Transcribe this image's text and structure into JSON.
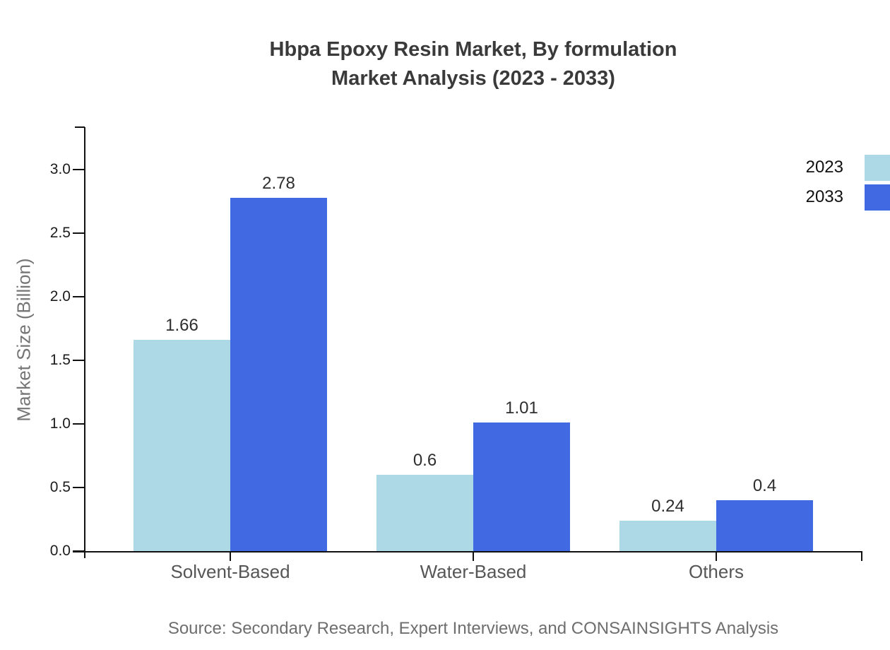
{
  "title": {
    "line1": "Hbpa Epoxy Resin Market, By formulation",
    "line2": "Market Analysis (2023 - 2033)"
  },
  "chart_data": {
    "type": "bar",
    "categories": [
      "Solvent-Based",
      "Water-Based",
      "Others"
    ],
    "series": [
      {
        "name": "2023",
        "color": "#add8e6",
        "values": [
          1.66,
          0.6,
          0.24
        ],
        "labels": [
          "1.66",
          "0.6",
          "0.24"
        ]
      },
      {
        "name": "2033",
        "color": "#4169e1",
        "values": [
          2.78,
          1.01,
          0.4
        ],
        "labels": [
          "2.78",
          "1.01",
          "0.4"
        ]
      }
    ],
    "title": "Hbpa Epoxy Resin Market, By formulation Market Analysis (2023 - 2033)",
    "xlabel": "",
    "ylabel": "Market Size (Billion)",
    "ylim": [
      0,
      3.2
    ],
    "yticks": [
      "0.0",
      "0.5",
      "1.0",
      "1.5",
      "2.0",
      "2.5",
      "3.0"
    ],
    "grid": false,
    "legend_position": "upper-right-outside"
  },
  "legend": {
    "items": [
      {
        "label": "2023",
        "color": "#add8e6"
      },
      {
        "label": "2033",
        "color": "#4169e1"
      }
    ]
  },
  "source": "Source: Secondary Research, Expert Interviews, and CONSAINSIGHTS Analysis",
  "colors": {
    "axis": "#111111",
    "title_text": "#3a3a3a",
    "category_text": "#565656",
    "value_text": "#2e2e2e",
    "ylabel_text": "#757575",
    "source_text": "#6e6e6e"
  }
}
